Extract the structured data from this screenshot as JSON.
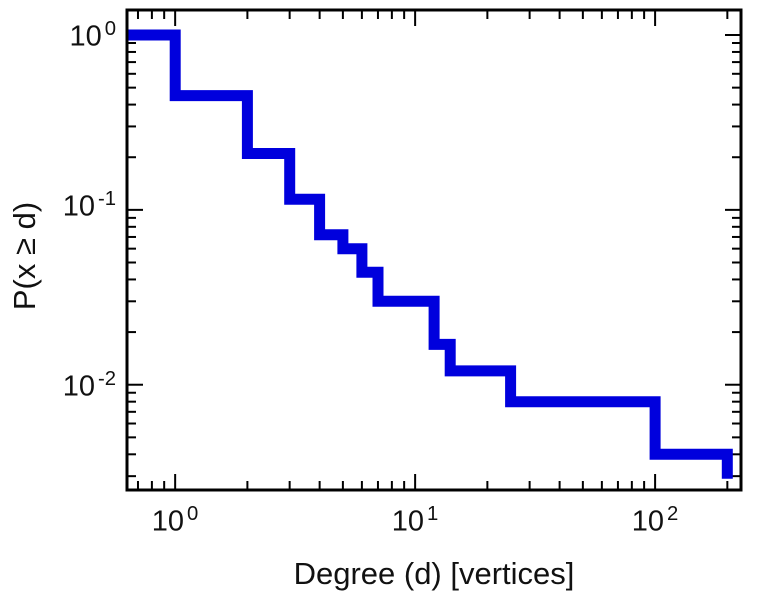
{
  "chart_data": {
    "type": "line",
    "subtype": "log-log step plot (complementary cumulative degree distribution)",
    "title": "",
    "xlabel": "Degree (d) [vertices]",
    "ylabel": "P(x ≥ d)",
    "x_scale": "log",
    "y_scale": "log",
    "xlim": [
      0.63,
      228
    ],
    "ylim": [
      0.0025,
      1.39
    ],
    "grid": false,
    "legend": "none",
    "frame_color": "#000000",
    "line_color": "#0000dd",
    "line_width": 11,
    "x_ticks": [
      {
        "value": 1,
        "base": "10",
        "exp": "0"
      },
      {
        "value": 10,
        "base": "10",
        "exp": "1"
      },
      {
        "value": 100,
        "base": "10",
        "exp": "2"
      }
    ],
    "y_ticks": [
      {
        "value": 1,
        "base": "10",
        "exp": "0"
      },
      {
        "value": 0.1,
        "base": "10",
        "exp": "-1"
      },
      {
        "value": 0.01,
        "base": "10",
        "exp": "-2"
      }
    ],
    "steps": [
      {
        "x": 0.63,
        "p": 1.0
      },
      {
        "x": 1,
        "p": 0.45
      },
      {
        "x": 2,
        "p": 0.21
      },
      {
        "x": 3,
        "p": 0.115
      },
      {
        "x": 4,
        "p": 0.072
      },
      {
        "x": 5,
        "p": 0.06
      },
      {
        "x": 6,
        "p": 0.044
      },
      {
        "x": 7,
        "p": 0.03
      },
      {
        "x": 12,
        "p": 0.017
      },
      {
        "x": 14,
        "p": 0.012
      },
      {
        "x": 25,
        "p": 0.008
      },
      {
        "x": 100,
        "p": 0.004
      },
      {
        "x": 200,
        "p": 0.0029
      }
    ]
  }
}
